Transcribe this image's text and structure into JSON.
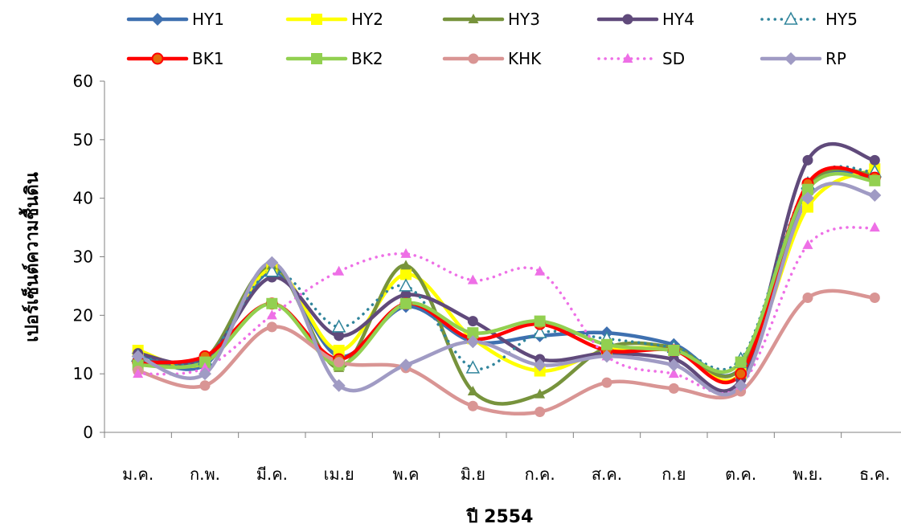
{
  "chart_data": {
    "type": "line",
    "title": "",
    "xlabel": "ปี 2554",
    "ylabel": "เปอร์เซ็นต์ความชื้นดิน",
    "ylim": [
      0,
      60
    ],
    "yticks": [
      "0",
      "10",
      "20",
      "30",
      "40",
      "50",
      "60"
    ],
    "categories": [
      "ม.ค.",
      "ก.พ.",
      "มี.ค.",
      "เม.ย",
      "พ.ค",
      "มิ.ย",
      "ก.ค.",
      "ส.ค.",
      "ก.ย",
      "ต.ค.",
      "พ.ย.",
      "ธ.ค."
    ],
    "legend_position": "top",
    "grid": false,
    "series": [
      {
        "name": "HY1",
        "color": "#3E70B0",
        "marker": "diamond",
        "dash": "solid",
        "values": [
          13.5,
          11.5,
          27.5,
          13.0,
          21.5,
          15.5,
          16.5,
          17.0,
          15.0,
          11.0,
          41.5,
          43.5
        ]
      },
      {
        "name": "HY2",
        "color": "#FFFF00",
        "marker": "square",
        "dash": "solid",
        "values": [
          14.0,
          12.0,
          28.0,
          14.0,
          27.0,
          16.0,
          10.5,
          14.0,
          14.0,
          10.0,
          38.5,
          45.0
        ]
      },
      {
        "name": "HY3",
        "color": "#77933C",
        "marker": "triangle",
        "dash": "solid",
        "values": [
          12.0,
          12.5,
          28.5,
          11.0,
          28.5,
          7.0,
          6.5,
          14.5,
          14.5,
          11.0,
          42.0,
          44.0
        ]
      },
      {
        "name": "HY4",
        "color": "#604A7B",
        "marker": "circle",
        "dash": "solid",
        "values": [
          13.5,
          12.5,
          26.5,
          16.5,
          23.5,
          19.0,
          12.5,
          13.5,
          12.5,
          9.0,
          46.5,
          46.5
        ]
      },
      {
        "name": "HY5",
        "color": "#31859C",
        "marker": "triangle-open",
        "dash": "dot",
        "values": [
          13.0,
          12.5,
          27.5,
          18.0,
          25.0,
          11.0,
          17.0,
          16.0,
          14.5,
          12.5,
          42.5,
          44.5
        ]
      },
      {
        "name": "BK1",
        "color": "#FF0000",
        "marker": "circle-red",
        "dash": "solid",
        "values": [
          12.0,
          13.0,
          22.0,
          12.5,
          22.0,
          16.0,
          18.5,
          14.0,
          14.0,
          10.0,
          42.5,
          43.5
        ]
      },
      {
        "name": "BK2",
        "color": "#92D050",
        "marker": "square",
        "dash": "solid",
        "values": [
          11.5,
          12.0,
          22.0,
          11.5,
          22.0,
          17.0,
          19.0,
          15.0,
          14.0,
          12.0,
          41.5,
          43.0
        ]
      },
      {
        "name": "KHK",
        "color": "#D99594",
        "marker": "circle",
        "dash": "solid",
        "values": [
          10.5,
          8.0,
          18.0,
          12.0,
          11.0,
          4.5,
          3.5,
          8.5,
          7.5,
          7.0,
          23.0,
          23.0
        ]
      },
      {
        "name": "SD",
        "color": "#EE6FE6",
        "marker": "triangle",
        "dash": "dot",
        "values": [
          10.0,
          11.0,
          20.0,
          27.5,
          30.5,
          26.0,
          27.5,
          13.0,
          10.0,
          8.0,
          32.0,
          35.0
        ]
      },
      {
        "name": "RP",
        "color": "#A09BC4",
        "marker": "diamond",
        "dash": "solid",
        "values": [
          13.0,
          10.0,
          29.0,
          8.0,
          11.5,
          15.5,
          11.5,
          13.0,
          11.5,
          8.0,
          40.0,
          40.5
        ]
      }
    ]
  }
}
